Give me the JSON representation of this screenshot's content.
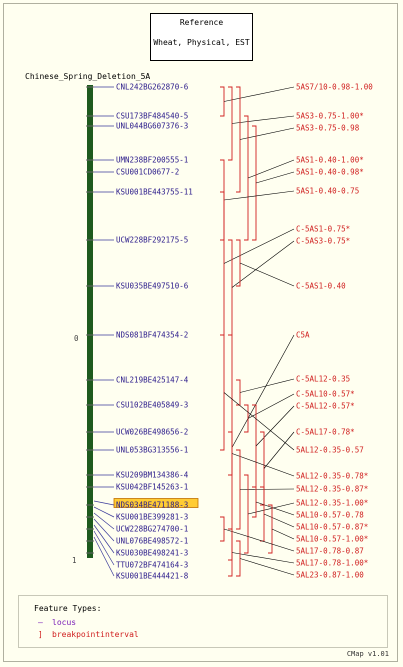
{
  "reference": {
    "title": "Reference",
    "subtitle": "Wheat, Physical, EST"
  },
  "map_name": "Chinese_Spring_Deletion_5A",
  "scale": {
    "top": "0",
    "bottom": "1"
  },
  "loci": [
    "CNL242BG262870-6",
    "CSU173BF484540-5",
    "UNL044BG607376-3",
    "UMN238BF200555-1",
    "CSU001CD0677-2",
    "KSU001BE443755-11",
    "UCW228BF292175-5",
    "KSU035BE497510-6",
    "NDS081BF474354-2",
    "CNL219BE425147-4",
    "CSU102BE405849-3",
    "UCW026BE498656-2",
    "UNL053BG313556-1",
    "KSU209BM134386-4",
    "KSU042BF145263-1",
    "NDS034BE471188-3",
    "KSU001BE399281-3",
    "UCW228BG274700-1",
    "UNL076BE498572-1",
    "KSU030BE498241-3",
    "TTU072BF474164-3",
    "KSU001BE444421-8"
  ],
  "highlighted_locus": "NDS034BE471188-3",
  "breakpoints": [
    "5AS7/10-0.98-1.00",
    "5AS3-0.75-1.00*",
    "5AS3-0.75-0.98",
    "5AS1-0.40-1.00*",
    "5AS1-0.40-0.98*",
    "5AS1-0.40-0.75",
    "C-5AS1-0.75*",
    "C-5AS3-0.75*",
    "C-5AS1-0.40",
    "C5A",
    "C-5AL12-0.35",
    "C-5AL10-0.57*",
    "C-5AL12-0.57*",
    "C-5AL17-0.78*",
    "5AL12-0.35-0.57",
    "5AL12-0.35-0.78*",
    "5AL12-0.35-0.87*",
    "5AL12-0.35-1.00*",
    "5AL10-0.57-0.78",
    "5AL10-0.57-0.87*",
    "5AL10-0.57-1.00*",
    "5AL17-0.78-0.87",
    "5AL17-0.78-1.00*",
    "5AL23-0.87-1.00"
  ],
  "legend": {
    "title": "Feature Types:",
    "locus_label": "locus",
    "breakpoint_label": "breakpointinterval"
  },
  "version": "CMap v1.01",
  "colors": {
    "background": "#fffff0",
    "chromosome": "#1e5a1e",
    "locus_text": "#2a1a8a",
    "breakpoint": "#d02020",
    "highlight_fill": "#ffcc33",
    "highlight_border": "#c07000"
  }
}
